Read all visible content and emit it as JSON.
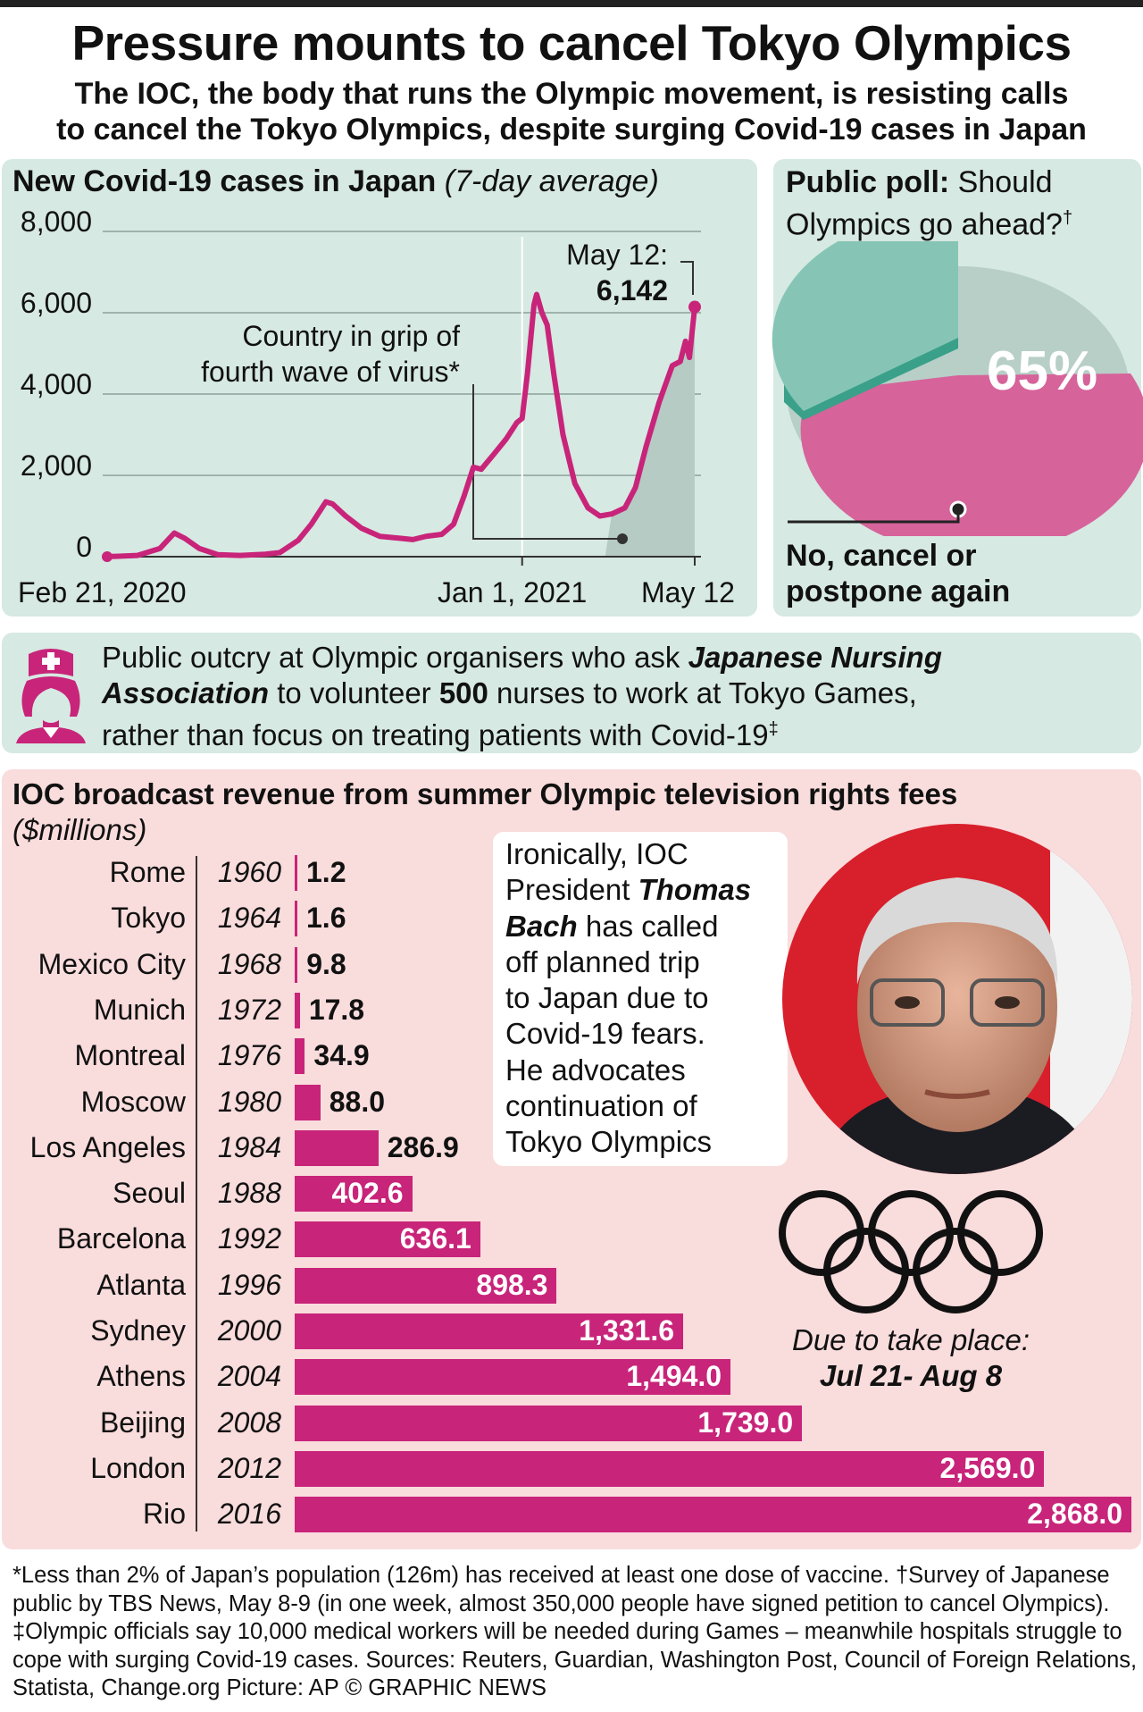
{
  "header": {
    "title": "Pressure mounts to cancel Tokyo Olympics",
    "subtitle_line1": "The IOC, the body that runs the Olympic movement, is resisting calls",
    "subtitle_line2": "to cancel the Tokyo Olympics, despite surging Covid-19 cases in Japan"
  },
  "chart_data": [
    {
      "type": "line",
      "title": "New Covid-19 cases in Japan",
      "subtitle": "(7-day average)",
      "ylim": [
        0,
        8000
      ],
      "yticks": [
        "8,000",
        "6,000",
        "4,000",
        "2,000",
        "0"
      ],
      "xticks": [
        "Feb 21, 2020",
        "Jan 1, 2021",
        "May 12"
      ],
      "grid": true,
      "points": [
        [
          "2020-02-21",
          0
        ],
        [
          "2020-03-15",
          30
        ],
        [
          "2020-04-01",
          200
        ],
        [
          "2020-04-12",
          580
        ],
        [
          "2020-04-20",
          450
        ],
        [
          "2020-05-01",
          200
        ],
        [
          "2020-05-15",
          50
        ],
        [
          "2020-06-01",
          30
        ],
        [
          "2020-06-20",
          60
        ],
        [
          "2020-07-01",
          100
        ],
        [
          "2020-07-15",
          400
        ],
        [
          "2020-07-25",
          800
        ],
        [
          "2020-08-05",
          1350
        ],
        [
          "2020-08-10",
          1300
        ],
        [
          "2020-08-20",
          1000
        ],
        [
          "2020-09-01",
          700
        ],
        [
          "2020-09-15",
          500
        ],
        [
          "2020-10-01",
          450
        ],
        [
          "2020-10-10",
          420
        ],
        [
          "2020-10-20",
          500
        ],
        [
          "2020-11-01",
          550
        ],
        [
          "2020-11-10",
          800
        ],
        [
          "2020-11-18",
          1500
        ],
        [
          "2020-11-25",
          2200
        ],
        [
          "2020-12-01",
          2150
        ],
        [
          "2020-12-10",
          2500
        ],
        [
          "2020-12-20",
          2900
        ],
        [
          "2020-12-28",
          3300
        ],
        [
          "2021-01-01",
          3400
        ],
        [
          "2021-01-05",
          4500
        ],
        [
          "2021-01-10",
          6200
        ],
        [
          "2021-01-12",
          6450
        ],
        [
          "2021-01-16",
          6000
        ],
        [
          "2021-01-20",
          5700
        ],
        [
          "2021-01-25",
          4500
        ],
        [
          "2021-02-01",
          3000
        ],
        [
          "2021-02-10",
          1800
        ],
        [
          "2021-02-20",
          1200
        ],
        [
          "2021-03-01",
          1000
        ],
        [
          "2021-03-10",
          1050
        ],
        [
          "2021-03-20",
          1200
        ],
        [
          "2021-03-28",
          1700
        ],
        [
          "2021-04-05",
          2700
        ],
        [
          "2021-04-15",
          3800
        ],
        [
          "2021-04-25",
          4700
        ],
        [
          "2021-05-01",
          4800
        ],
        [
          "2021-05-05",
          5300
        ],
        [
          "2021-05-08",
          4900
        ],
        [
          "2021-05-12",
          6142
        ]
      ],
      "annotations": {
        "wave": [
          "Country in grip of",
          "fourth wave of virus*"
        ],
        "last_label": "May 12:",
        "last_value": "6,142"
      },
      "shaded_from": "2021-03-05",
      "line_color": "#c8247a"
    },
    {
      "type": "pie",
      "title_bold": "Public poll:",
      "title_rest": "Should",
      "title_line2": "Olympics go ahead?",
      "title_mark": "†",
      "slices": [
        {
          "label": "No, cancel or postpone again",
          "value": 65,
          "color": "#d6639a"
        },
        {
          "value": 35,
          "color": "#86c5b5"
        }
      ],
      "value_label": "65%",
      "label_line1": "No, cancel or",
      "label_line2": "postpone again"
    },
    {
      "type": "bar",
      "title": "IOC broadcast revenue from summer Olympic television rights fees",
      "subtitle": "($millions)",
      "color": "#c8247a",
      "categories": [
        [
          "Rome",
          "1960"
        ],
        [
          "Tokyo",
          "1964"
        ],
        [
          "Mexico City",
          "1968"
        ],
        [
          "Munich",
          "1972"
        ],
        [
          "Montreal",
          "1976"
        ],
        [
          "Moscow",
          "1980"
        ],
        [
          "Los Angeles",
          "1984"
        ],
        [
          "Seoul",
          "1988"
        ],
        [
          "Barcelona",
          "1992"
        ],
        [
          "Atlanta",
          "1996"
        ],
        [
          "Sydney",
          "2000"
        ],
        [
          "Athens",
          "2004"
        ],
        [
          "Beijing",
          "2008"
        ],
        [
          "London",
          "2012"
        ],
        [
          "Rio",
          "2016"
        ]
      ],
      "values": [
        1.2,
        1.6,
        9.8,
        17.8,
        34.9,
        88.0,
        286.9,
        402.6,
        636.1,
        898.3,
        1331.6,
        1494.0,
        1739.0,
        2569.0,
        2868.0
      ],
      "labels": [
        "1.2",
        "1.6",
        "9.8",
        "17.8",
        "34.9",
        "88.0",
        "286.9",
        "402.6",
        "636.1",
        "898.3",
        "1,331.6",
        "1,494.0",
        "1,739.0",
        "2,569.0",
        "2,868.0"
      ]
    }
  ],
  "nurse": {
    "t1": "Public outcry at Olympic organisers who ask ",
    "t2": "Japanese Nursing",
    "t3": "Association",
    "t4": " to volunteer ",
    "t5": "500",
    "t6": " nurses to work at Tokyo Games,",
    "t7": "rather than focus on treating patients with Covid-19",
    "t8": "‡",
    "icon": "nurse-icon"
  },
  "bach": {
    "l1": "Ironically, IOC",
    "l2a": "President ",
    "l2b": "Thomas",
    "l3a": "Bach",
    "l3b": " has called",
    "l4": "off planned trip",
    "l5": "to Japan due to",
    "l6": "Covid-19 fears.",
    "l7": "He advocates",
    "l8": "continuation of",
    "l9": "Tokyo Olympics"
  },
  "games": {
    "due": "Due to take place:",
    "dates": "Jul 21- Aug 8",
    "icon": "olympic-rings-icon"
  },
  "footnote": "*Less than 2% of Japan’s population (126m) has received at least one dose of vaccine. †Survey of Japanese public by TBS News, May 8-9 (in one week, almost 350,000 people have signed petition to cancel Olympics). ‡Olympic officials say 10,000 medical workers will be needed during Games – meanwhile hospitals struggle to cope with surging Covid-19 cases. Sources: Reuters, Guardian, Washington Post, Council of Foreign Relations, Statista, Change.org  Picture: AP  © GRAPHIC NEWS"
}
